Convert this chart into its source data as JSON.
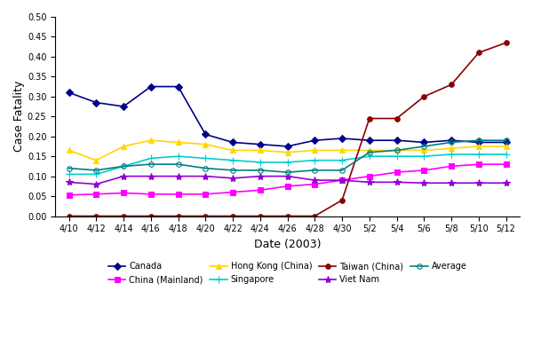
{
  "title": "",
  "xlabel": "Date (2003)",
  "ylabel": "Case Fatality",
  "ylim": [
    0.0,
    0.5
  ],
  "yticks": [
    0.0,
    0.05,
    0.1,
    0.15,
    0.2,
    0.25,
    0.3,
    0.35,
    0.4,
    0.45,
    0.5
  ],
  "x_labels": [
    "4/10",
    "4/12",
    "4/14",
    "4/16",
    "4/18",
    "4/20",
    "4/22",
    "4/24",
    "4/26",
    "4/28",
    "4/30",
    "5/2",
    "5/4",
    "5/6",
    "5/8",
    "5/10",
    "5/12"
  ],
  "series": {
    "Canada": {
      "color": "#00008B",
      "marker": "D",
      "markersize": 4,
      "linewidth": 1.2,
      "markerfacecolor": "#00008B",
      "values": [
        0.31,
        0.285,
        0.275,
        0.325,
        0.325,
        0.205,
        0.185,
        0.18,
        0.175,
        0.19,
        0.195,
        0.19,
        0.19,
        0.185,
        0.19,
        0.185,
        0.185
      ]
    },
    "China (Mainland)": {
      "color": "#FF00FF",
      "marker": "s",
      "markersize": 4,
      "linewidth": 1.2,
      "markerfacecolor": "#FF00FF",
      "values": [
        0.053,
        0.055,
        0.058,
        0.055,
        0.055,
        0.055,
        0.06,
        0.065,
        0.075,
        0.08,
        0.09,
        0.1,
        0.11,
        0.115,
        0.125,
        0.13,
        0.13
      ]
    },
    "Hong Kong (China)": {
      "color": "#FFD700",
      "marker": "^",
      "markersize": 5,
      "linewidth": 1.2,
      "markerfacecolor": "#FFD700",
      "values": [
        0.165,
        0.14,
        0.175,
        0.19,
        0.185,
        0.18,
        0.165,
        0.165,
        0.16,
        0.165,
        0.165,
        0.165,
        0.165,
        0.165,
        0.17,
        0.175,
        0.175
      ]
    },
    "Singapore": {
      "color": "#00CED1",
      "marker": "+",
      "markersize": 6,
      "linewidth": 1.2,
      "markerfacecolor": "#00CED1",
      "values": [
        0.105,
        0.105,
        0.125,
        0.145,
        0.15,
        0.145,
        0.14,
        0.135,
        0.135,
        0.14,
        0.14,
        0.15,
        0.15,
        0.15,
        0.155,
        0.155,
        0.155
      ]
    },
    "Taiwan (China)": {
      "color": "#8B0000",
      "marker": "o",
      "markersize": 4,
      "linewidth": 1.2,
      "markerfacecolor": "#8B0000",
      "values": [
        0.0,
        0.0,
        0.0,
        0.0,
        0.0,
        0.0,
        0.0,
        0.0,
        0.0,
        0.0,
        0.04,
        0.245,
        0.245,
        0.3,
        0.33,
        0.41,
        0.435
      ]
    },
    "Viet Nam": {
      "color": "#9400D3",
      "marker": "*",
      "markersize": 6,
      "linewidth": 1.2,
      "markerfacecolor": "#9400D3",
      "values": [
        0.085,
        0.08,
        0.1,
        0.1,
        0.1,
        0.1,
        0.095,
        0.1,
        0.1,
        0.09,
        0.09,
        0.085,
        0.085,
        0.083,
        0.083,
        0.083,
        0.083
      ]
    },
    "Average": {
      "color": "#008080",
      "marker": "o",
      "markersize": 4,
      "linewidth": 1.2,
      "markerfacecolor": "none",
      "values": [
        0.12,
        0.115,
        0.125,
        0.13,
        0.13,
        0.12,
        0.115,
        0.115,
        0.11,
        0.115,
        0.115,
        0.16,
        0.165,
        0.175,
        0.185,
        0.19,
        0.19
      ]
    }
  },
  "legend_order": [
    "Canada",
    "China (Mainland)",
    "Hong Kong (China)",
    "Singapore",
    "Taiwan (China)",
    "Viet Nam",
    "Average"
  ],
  "legend_layout": [
    [
      "Canada",
      "China (Mainland)",
      "Hong Kong (China)",
      "Singapore"
    ],
    [
      "Taiwan (China)",
      "Viet Nam",
      "Average"
    ]
  ]
}
